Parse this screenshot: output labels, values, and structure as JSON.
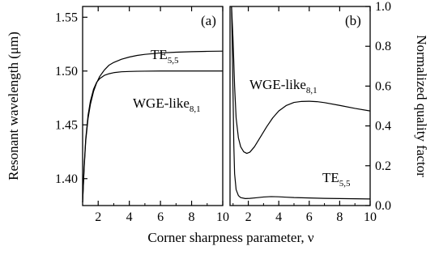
{
  "chart_data": [
    {
      "type": "line",
      "panel": "a",
      "panel_label": "(a)",
      "xlabel": "Corner sharpness parameter, ν",
      "ylabel": "Resonant wavelength (μm)",
      "xlim": [
        1,
        10
      ],
      "ylim": [
        1.375,
        1.56
      ],
      "x_ticks": [
        2,
        4,
        6,
        8,
        10
      ],
      "y_ticks": [
        1.4,
        1.45,
        1.5,
        1.55
      ],
      "x_tick_labels": [
        "2",
        "4",
        "6",
        "8",
        "10"
      ],
      "y_tick_labels": [
        "1.40",
        "1.45",
        "1.50",
        "1.55"
      ],
      "grid": false,
      "legend": "none",
      "series": [
        {
          "name": "TE5,5",
          "label_main": "TE",
          "label_sub": "5,5",
          "color": "#000000",
          "x": [
            1.0,
            1.1,
            1.2,
            1.35,
            1.5,
            1.7,
            1.9,
            2.1,
            2.4,
            2.7,
            3.0,
            3.5,
            4.0,
            4.5,
            5.0,
            6.0,
            7.0,
            8.0,
            9.0,
            10.0
          ],
          "y": [
            1.378,
            1.41,
            1.435,
            1.456,
            1.469,
            1.481,
            1.489,
            1.495,
            1.501,
            1.5055,
            1.508,
            1.511,
            1.513,
            1.5145,
            1.5155,
            1.5168,
            1.5175,
            1.518,
            1.5183,
            1.5185
          ]
        },
        {
          "name": "WGE-like8,1",
          "label_main": "WGE-like",
          "label_sub": "8,1",
          "color": "#000000",
          "x": [
            1.0,
            1.1,
            1.2,
            1.35,
            1.5,
            1.7,
            1.9,
            2.1,
            2.4,
            2.7,
            3.0,
            3.5,
            4.0,
            4.5,
            5.0,
            6.0,
            7.0,
            8.0,
            9.0,
            10.0
          ],
          "y": [
            1.378,
            1.412,
            1.437,
            1.459,
            1.472,
            1.483,
            1.4895,
            1.493,
            1.496,
            1.4975,
            1.4985,
            1.4993,
            1.4996,
            1.4998,
            1.4999,
            1.5,
            1.5,
            1.5,
            1.5,
            1.5
          ]
        }
      ]
    },
    {
      "type": "line",
      "panel": "b",
      "panel_label": "(b)",
      "xlabel": "Corner sharpness parameter, ν",
      "ylabel": "Normalized quality factor",
      "xlim": [
        0.8,
        10
      ],
      "ylim": [
        0,
        1
      ],
      "x_ticks": [
        2,
        4,
        6,
        8,
        10
      ],
      "y_ticks": [
        0.0,
        0.2,
        0.4,
        0.6,
        0.8,
        1.0
      ],
      "x_tick_labels": [
        "2",
        "4",
        "6",
        "8",
        "10"
      ],
      "y_tick_labels": [
        "0.0",
        "0.2",
        "0.4",
        "0.6",
        "0.8",
        "1.0"
      ],
      "grid": false,
      "legend": "none",
      "series": [
        {
          "name": "WGE-like8,1",
          "label_main": "WGE-like",
          "label_sub": "8,1",
          "color": "#000000",
          "x": [
            0.9,
            1.0,
            1.1,
            1.2,
            1.35,
            1.5,
            1.7,
            1.9,
            2.1,
            2.4,
            2.8,
            3.2,
            3.6,
            4.0,
            4.5,
            5.0,
            5.5,
            6.0,
            6.5,
            7.0,
            8.0,
            9.0,
            10.0
          ],
          "y": [
            1.0,
            0.83,
            0.6,
            0.44,
            0.34,
            0.295,
            0.27,
            0.262,
            0.268,
            0.295,
            0.345,
            0.395,
            0.44,
            0.475,
            0.503,
            0.518,
            0.523,
            0.524,
            0.522,
            0.517,
            0.503,
            0.488,
            0.475
          ]
        },
        {
          "name": "TE5,5",
          "label_main": "TE",
          "label_sub": "5,5",
          "color": "#000000",
          "x": [
            0.9,
            1.0,
            1.05,
            1.1,
            1.2,
            1.35,
            1.5,
            1.8,
            2.1,
            2.5,
            3.0,
            3.5,
            4.0,
            4.5,
            5.0,
            6.0,
            7.0,
            8.0,
            9.0,
            10.0
          ],
          "y": [
            1.0,
            0.55,
            0.3,
            0.16,
            0.08,
            0.05,
            0.04,
            0.035,
            0.036,
            0.039,
            0.043,
            0.045,
            0.044,
            0.042,
            0.04,
            0.038,
            0.036,
            0.035,
            0.034,
            0.033
          ]
        }
      ]
    }
  ]
}
